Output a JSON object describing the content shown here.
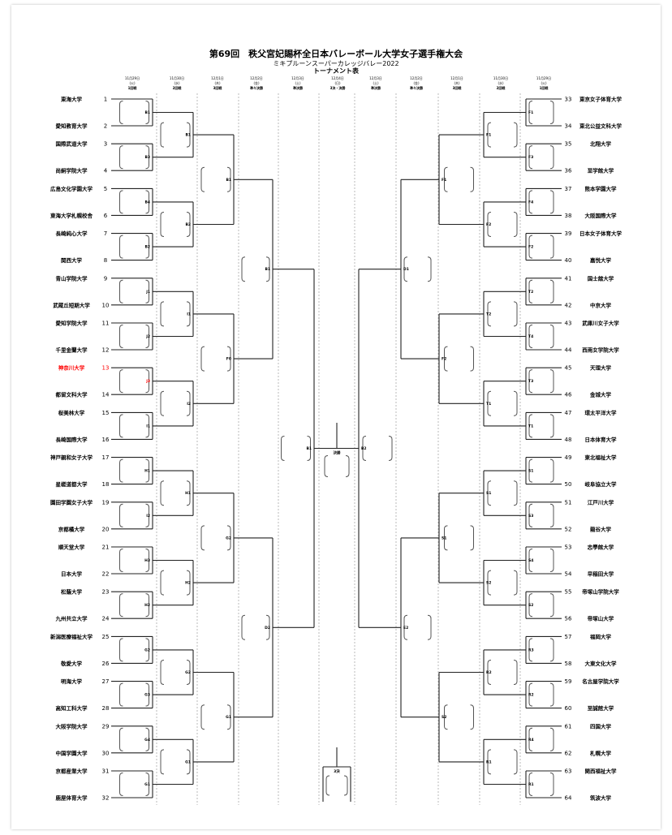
{
  "header": {
    "title": "第69回　秩父宮妃賜杯全日本バレーボール大学女子選手権大会",
    "subtitle": "ミキプルーンスーパーカレッジバレー2022",
    "section": "トーナメント表"
  },
  "dates": [
    {
      "date": "11月29日",
      "dow": "(火)",
      "round": "1回戦"
    },
    {
      "date": "11月30日",
      "dow": "(水)",
      "round": "2回戦"
    },
    {
      "date": "12月1日",
      "dow": "(木)",
      "round": "3回戦"
    },
    {
      "date": "12月2日",
      "dow": "(金)",
      "round": "準々決勝"
    },
    {
      "date": "12月3日",
      "dow": "(土)",
      "round": "準決勝"
    },
    {
      "date": "12月4日",
      "dow": "(日)",
      "round": "3決・決勝"
    },
    {
      "date": "12月3日",
      "dow": "(土)",
      "round": "準決勝"
    },
    {
      "date": "12月2日",
      "dow": "(金)",
      "round": "準々決勝"
    },
    {
      "date": "12月1日",
      "dow": "(木)",
      "round": "3回戦"
    },
    {
      "date": "11月30日",
      "dow": "(水)",
      "round": "2回戦"
    },
    {
      "date": "11月29日",
      "dow": "(火)",
      "round": "1回戦"
    }
  ],
  "highlight_color": "#ff0000",
  "left_teams": [
    {
      "num": "1",
      "name": "東海大学"
    },
    {
      "num": "2",
      "name": "愛知教育大学"
    },
    {
      "num": "3",
      "name": "国際武道大学"
    },
    {
      "num": "4",
      "name": "尚絅学院大学"
    },
    {
      "num": "5",
      "name": "広島文化学園大学"
    },
    {
      "num": "6",
      "name": "東海大学札幌校舎"
    },
    {
      "num": "7",
      "name": "長崎純心大学"
    },
    {
      "num": "8",
      "name": "関西大学"
    },
    {
      "num": "9",
      "name": "青山学院大学"
    },
    {
      "num": "10",
      "name": "武蔵丘短期大学"
    },
    {
      "num": "11",
      "name": "愛知学院大学"
    },
    {
      "num": "12",
      "name": "千里金蘭大学"
    },
    {
      "num": "13",
      "name": "神奈川大学",
      "highlight": true
    },
    {
      "num": "14",
      "name": "都留文科大学"
    },
    {
      "num": "15",
      "name": "桜美林大学"
    },
    {
      "num": "16",
      "name": "長崎国際大学"
    },
    {
      "num": "17",
      "name": "神戸親和女子大学"
    },
    {
      "num": "18",
      "name": "星槎道都大学"
    },
    {
      "num": "19",
      "name": "園田学園女子大学"
    },
    {
      "num": "20",
      "name": "京都橘大学"
    },
    {
      "num": "21",
      "name": "順天堂大学"
    },
    {
      "num": "22",
      "name": "日本大学"
    },
    {
      "num": "23",
      "name": "松蔭大学"
    },
    {
      "num": "24",
      "name": "九州共立大学"
    },
    {
      "num": "25",
      "name": "新潟医療福祉大学"
    },
    {
      "num": "26",
      "name": "敬愛大学"
    },
    {
      "num": "27",
      "name": "明海大学"
    },
    {
      "num": "28",
      "name": "高知工科大学"
    },
    {
      "num": "29",
      "name": "大阪学院大学"
    },
    {
      "num": "30",
      "name": "中国学園大学"
    },
    {
      "num": "31",
      "name": "京都産業大学"
    },
    {
      "num": "32",
      "name": "鹿屋体育大学"
    }
  ],
  "right_teams": [
    {
      "num": "33",
      "name": "東京女子体育大学"
    },
    {
      "num": "34",
      "name": "東北公益文科大学"
    },
    {
      "num": "35",
      "name": "北翔大学"
    },
    {
      "num": "36",
      "name": "至学館大学"
    },
    {
      "num": "37",
      "name": "熊本学園大学"
    },
    {
      "num": "38",
      "name": "大阪国際大学"
    },
    {
      "num": "39",
      "name": "日本女子体育大学"
    },
    {
      "num": "40",
      "name": "嘉悦大学"
    },
    {
      "num": "41",
      "name": "国士舘大学"
    },
    {
      "num": "42",
      "name": "中京大学"
    },
    {
      "num": "43",
      "name": "武庫川女子大学"
    },
    {
      "num": "44",
      "name": "西南女学院大学"
    },
    {
      "num": "45",
      "name": "天理大学"
    },
    {
      "num": "46",
      "name": "金城大学"
    },
    {
      "num": "47",
      "name": "環太平洋大学"
    },
    {
      "num": "48",
      "name": "日本体育大学"
    },
    {
      "num": "49",
      "name": "東北福祉大学"
    },
    {
      "num": "50",
      "name": "岐阜協立大学"
    },
    {
      "num": "51",
      "name": "江戸川大学"
    },
    {
      "num": "52",
      "name": "龍谷大学"
    },
    {
      "num": "53",
      "name": "志學館大学"
    },
    {
      "num": "54",
      "name": "早稲田大学"
    },
    {
      "num": "55",
      "name": "帝塚山学院大学"
    },
    {
      "num": "56",
      "name": "帝塚山大学"
    },
    {
      "num": "57",
      "name": "福岡大学"
    },
    {
      "num": "58",
      "name": "大東文化大学"
    },
    {
      "num": "59",
      "name": "名古屋学院大学"
    },
    {
      "num": "60",
      "name": "至誠館大学"
    },
    {
      "num": "61",
      "name": "四国大学"
    },
    {
      "num": "62",
      "name": "札幌大学"
    },
    {
      "num": "63",
      "name": "関西福祉大学"
    },
    {
      "num": "64",
      "name": "筑波大学"
    }
  ],
  "left_match_labels": [
    [
      "B1",
      "B3",
      "B4",
      "B2",
      "J1",
      "J2",
      "J3",
      "I1",
      "H1",
      "I2",
      "H3",
      "H2",
      "G2",
      "G3",
      "G4",
      "G1"
    ],
    [
      "B1",
      "B2",
      "I1",
      "I2",
      "H1",
      "H2",
      "G2",
      "G1"
    ],
    [
      "B1",
      "F0",
      "G2",
      "G1"
    ],
    [
      "B1",
      "D2"
    ],
    [
      "B1"
    ]
  ],
  "right_match_labels": [
    [
      "F1",
      "F3",
      "F4",
      "F2",
      "T2",
      "T4",
      "T3",
      "T1",
      "S1",
      "S3",
      "S4",
      "S2",
      "R3",
      "R2",
      "R4",
      "R1"
    ],
    [
      "F1",
      "F2",
      "T2",
      "T1",
      "S1",
      "S2",
      "R2",
      "R1"
    ],
    [
      "F1",
      "F2",
      "S1",
      "S2"
    ],
    [
      "D1",
      "E2"
    ],
    [
      "B2"
    ]
  ],
  "final_label": "決勝",
  "third_place_label": "3決"
}
